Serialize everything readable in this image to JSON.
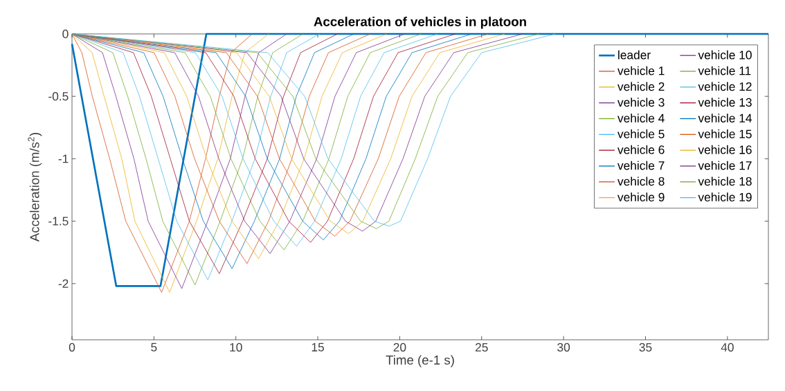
{
  "chart_data": {
    "type": "line",
    "title": "Acceleration of vehicles in platoon",
    "xlabel": "Time (e-1 s)",
    "ylabel": "Acceleration (m/s$^{2}$)",
    "xlim": [
      0,
      42.5
    ],
    "ylim": [
      -2.45,
      0
    ],
    "xticks": [
      0,
      5,
      10,
      15,
      20,
      25,
      30,
      35,
      40
    ],
    "yticks": [
      -2,
      -1.5,
      -1,
      -0.5,
      0
    ],
    "legend": "top right",
    "series": [
      {
        "name": "leader",
        "color": "#0072bd",
        "x": [
          0,
          2.7,
          5.4,
          8.2,
          42.5
        ],
        "values": [
          -0.08,
          -2.02,
          -2.02,
          0,
          0
        ]
      },
      {
        "name": "vehicle 1",
        "color": "#d95319",
        "x": [
          0,
          0.6,
          1.24,
          2.3,
          3.28,
          5.47,
          7.16,
          8.15,
          8.99,
          9.7,
          11
        ],
        "values": [
          0,
          -0.15,
          -0.5,
          -1,
          -1.5,
          -2.07,
          -1.5,
          -1,
          -0.5,
          -0.15,
          0
        ]
      },
      {
        "name": "vehicle 2",
        "color": "#edb120",
        "x": [
          0,
          1.23,
          1.96,
          3.04,
          3.84,
          5.96,
          7.6,
          8.9,
          9.77,
          10.55,
          12
        ],
        "values": [
          0,
          -0.15,
          -0.5,
          -1,
          -1.5,
          -2.07,
          -1.5,
          -1,
          -0.5,
          -0.15,
          0
        ]
      },
      {
        "name": "vehicle 3",
        "color": "#7e2f8e",
        "x": [
          0,
          1.86,
          2.68,
          3.78,
          4.65,
          6.7,
          8.28,
          9.66,
          10.56,
          11.4,
          13.1
        ],
        "values": [
          0,
          -0.15,
          -0.5,
          -1,
          -1.5,
          -2.04,
          -1.5,
          -1,
          -0.5,
          -0.15,
          0
        ]
      },
      {
        "name": "vehicle 4",
        "color": "#77ac30",
        "x": [
          0,
          2.49,
          3.4,
          4.52,
          5.54,
          7.51,
          9.04,
          10.41,
          11.34,
          12.25,
          14.1
        ],
        "values": [
          0,
          -0.15,
          -0.5,
          -1,
          -1.5,
          -2.01,
          -1.5,
          -1,
          -0.5,
          -0.15,
          0
        ]
      },
      {
        "name": "vehicle 5",
        "color": "#4dbeee",
        "x": [
          0,
          3.12,
          4.12,
          5.26,
          6.39,
          8.29,
          9.76,
          11.16,
          12.13,
          13.1,
          15.1
        ],
        "values": [
          0,
          -0.15,
          -0.5,
          -1,
          -1.5,
          -1.97,
          -1.5,
          -1,
          -0.5,
          -0.15,
          0
        ]
      },
      {
        "name": "vehicle 6",
        "color": "#a2142f",
        "x": [
          0,
          3.75,
          4.84,
          6.0,
          7.16,
          8.99,
          10.41,
          11.92,
          12.91,
          13.95,
          16.2
        ],
        "values": [
          0,
          -0.15,
          -0.5,
          -1,
          -1.5,
          -1.92,
          -1.5,
          -1,
          -0.5,
          -0.15,
          0
        ]
      },
      {
        "name": "vehicle 7",
        "color": "#0072bd",
        "x": [
          0,
          4.38,
          5.56,
          6.74,
          8.01,
          9.77,
          11.13,
          12.67,
          13.69,
          14.8,
          17.2
        ],
        "values": [
          0,
          -0.15,
          -0.5,
          -1,
          -1.5,
          -1.88,
          -1.5,
          -1,
          -0.5,
          -0.15,
          0
        ]
      },
      {
        "name": "vehicle 8",
        "color": "#d95319",
        "x": [
          0,
          5.01,
          6.28,
          7.48,
          8.99,
          10.68,
          11.99,
          13.42,
          14.48,
          15.65,
          18.2
        ],
        "values": [
          0,
          -0.15,
          -0.5,
          -1,
          -1.5,
          -1.84,
          -1.5,
          -1,
          -0.5,
          -0.15,
          0
        ]
      },
      {
        "name": "vehicle 9",
        "color": "#edb120",
        "x": [
          0,
          5.64,
          7.0,
          8.22,
          9.77,
          11.39,
          12.64,
          14.17,
          15.26,
          16.5,
          19.2
        ],
        "values": [
          0,
          -0.15,
          -0.5,
          -1,
          -1.5,
          -1.8,
          -1.5,
          -1,
          -0.5,
          -0.15,
          0
        ]
      },
      {
        "name": "vehicle 10",
        "color": "#7e2f8e",
        "x": [
          0,
          6.27,
          7.72,
          8.96,
          10.54,
          12.09,
          13.29,
          14.93,
          16.05,
          17.35,
          20.3
        ],
        "values": [
          0,
          -0.15,
          -0.5,
          -1,
          -1.5,
          -1.76,
          -1.5,
          -1,
          -0.5,
          -0.15,
          0
        ]
      },
      {
        "name": "vehicle 11",
        "color": "#77ac30",
        "x": [
          0,
          6.9,
          8.44,
          9.7,
          11.47,
          12.94,
          14.08,
          15.68,
          16.83,
          18.2,
          21.3
        ],
        "values": [
          0,
          -0.15,
          -0.5,
          -1,
          -1.5,
          -1.73,
          -1.5,
          -1,
          -0.5,
          -0.15,
          0
        ]
      },
      {
        "name": "vehicle 12",
        "color": "#4dbeee",
        "x": [
          0,
          7.53,
          9.16,
          10.44,
          12.31,
          13.71,
          14.8,
          16.43,
          17.61,
          19.05,
          22.3
        ],
        "values": [
          0,
          -0.15,
          -0.5,
          -1,
          -1.5,
          -1.7,
          -1.5,
          -1,
          -0.5,
          -0.15,
          0
        ]
      },
      {
        "name": "vehicle 13",
        "color": "#a2142f",
        "x": [
          0,
          8.16,
          9.88,
          11.18,
          13.23,
          14.56,
          15.59,
          17.19,
          18.4,
          19.9,
          23.4
        ],
        "values": [
          0,
          -0.15,
          -0.5,
          -1,
          -1.5,
          -1.67,
          -1.5,
          -1,
          -0.5,
          -0.15,
          0
        ]
      },
      {
        "name": "vehicle 14",
        "color": "#0072bd",
        "x": [
          0,
          8.79,
          10.6,
          11.92,
          14.08,
          15.34,
          16.32,
          17.94,
          19.18,
          20.75,
          24.4
        ],
        "values": [
          0,
          -0.15,
          -0.5,
          -1,
          -1.5,
          -1.65,
          -1.5,
          -1,
          -0.5,
          -0.15,
          0
        ]
      },
      {
        "name": "vehicle 15",
        "color": "#d95319",
        "x": [
          0,
          9.42,
          11.32,
          12.66,
          14.85,
          16.04,
          16.96,
          18.69,
          19.97,
          21.6,
          25.4
        ],
        "values": [
          0,
          -0.15,
          -0.5,
          -1,
          -1.5,
          -1.62,
          -1.5,
          -1,
          -0.5,
          -0.15,
          0
        ]
      },
      {
        "name": "vehicle 16",
        "color": "#edb120",
        "x": [
          0,
          10.05,
          12.04,
          13.4,
          15.76,
          16.88,
          17.75,
          19.45,
          20.75,
          22.45,
          26.4
        ],
        "values": [
          0,
          -0.15,
          -0.5,
          -1,
          -1.5,
          -1.6,
          -1.5,
          -1,
          -0.5,
          -0.15,
          0
        ]
      },
      {
        "name": "vehicle 17",
        "color": "#7e2f8e",
        "x": [
          0,
          10.68,
          12.76,
          14.14,
          16.69,
          17.73,
          18.54,
          20.2,
          21.53,
          23.3,
          27.5
        ],
        "values": [
          0,
          -0.15,
          -0.5,
          -1,
          -1.5,
          -1.58,
          -1.5,
          -1,
          -0.5,
          -0.15,
          0
        ]
      },
      {
        "name": "vehicle 18",
        "color": "#77ac30",
        "x": [
          0,
          11.31,
          13.48,
          14.88,
          17.61,
          18.58,
          19.34,
          20.95,
          22.32,
          24.15,
          28.5
        ],
        "values": [
          0,
          -0.15,
          -0.5,
          -1,
          -1.5,
          -1.56,
          -1.5,
          -1,
          -0.5,
          -0.15,
          0
        ]
      },
      {
        "name": "vehicle 19",
        "color": "#4dbeee",
        "x": [
          0,
          11.94,
          14.2,
          15.62,
          18.45,
          19.35,
          20.05,
          21.7,
          23.1,
          25.0,
          29.5
        ],
        "values": [
          0,
          -0.15,
          -0.5,
          -1,
          -1.5,
          -1.54,
          -1.5,
          -1,
          -0.5,
          -0.15,
          0
        ]
      }
    ]
  }
}
